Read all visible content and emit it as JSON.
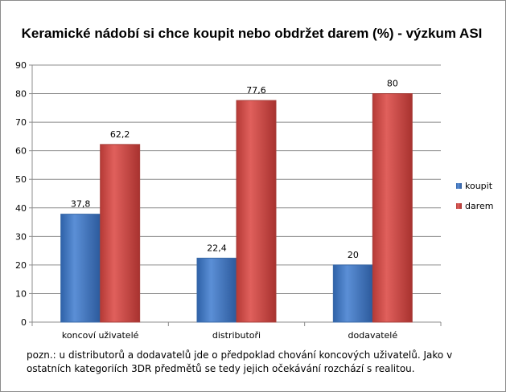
{
  "chart_data": {
    "type": "bar",
    "title": "Keramické nádobí si chce koupit nebo obdržet darem (%) - výzkum ASI",
    "categories": [
      "koncoví uživatelé",
      "distributoři",
      "dodavatelé"
    ],
    "series": [
      {
        "name": "koupit",
        "values": [
          37.8,
          22.4,
          20
        ],
        "labels": [
          "37,8",
          "22,4",
          "20"
        ],
        "color": "#4a7ebb"
      },
      {
        "name": "darem",
        "values": [
          62.2,
          77.6,
          80
        ],
        "labels": [
          "62,2",
          "77,6",
          "80"
        ],
        "color": "#be4b48"
      }
    ],
    "ylim": [
      0,
      90
    ],
    "yticks": [
      0,
      10,
      20,
      30,
      40,
      50,
      60,
      70,
      80,
      90
    ],
    "grid": true,
    "legend": "right"
  },
  "note": {
    "line1": "pozn.: u distributorů a  dodavatelů jde o předpoklad chování koncových uživatelů. Jako v",
    "line2": "ostatních kategoriích 3DR předmětů se tedy jejich očekávání rozchází s realitou."
  }
}
